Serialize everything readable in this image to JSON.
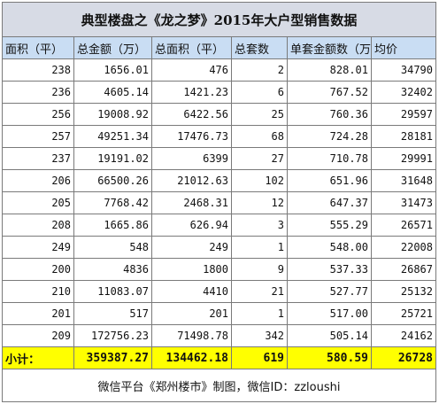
{
  "title": "典型楼盘之《龙之梦》2015年大户型销售数据",
  "columns": [
    "面积（平）",
    "总金额（万）",
    "总面积（平）",
    "总套数",
    "单套金额数（万）",
    "均价"
  ],
  "rows": [
    [
      "238",
      "1656.01",
      "476",
      "2",
      "828.01",
      "34790"
    ],
    [
      "236",
      "4605.14",
      "1421.23",
      "6",
      "767.52",
      "32402"
    ],
    [
      "256",
      "19008.92",
      "6422.56",
      "25",
      "760.36",
      "29597"
    ],
    [
      "257",
      "49251.34",
      "17476.73",
      "68",
      "724.28",
      "28181"
    ],
    [
      "237",
      "19191.02",
      "6399",
      "27",
      "710.78",
      "29991"
    ],
    [
      "206",
      "66500.26",
      "21012.63",
      "102",
      "651.96",
      "31648"
    ],
    [
      "205",
      "7768.42",
      "2468.31",
      "12",
      "647.37",
      "31473"
    ],
    [
      "208",
      "1665.86",
      "626.94",
      "3",
      "555.29",
      "26571"
    ],
    [
      "249",
      "548",
      "249",
      "1",
      "548.00",
      "22008"
    ],
    [
      "200",
      "4836",
      "1800",
      "9",
      "537.33",
      "26867"
    ],
    [
      "210",
      "11083.07",
      "4410",
      "21",
      "527.77",
      "25132"
    ],
    [
      "201",
      "517",
      "201",
      "1",
      "517.00",
      "25721"
    ],
    [
      "209",
      "172756.23",
      "71498.78",
      "342",
      "505.14",
      "24162"
    ]
  ],
  "total": {
    "label": "小计：",
    "values": [
      "359387.27",
      "134462.18",
      "619",
      "580.59",
      "26728"
    ]
  },
  "footer": "微信平台《郑州楼市》制图，微信ID：zzloushi"
}
